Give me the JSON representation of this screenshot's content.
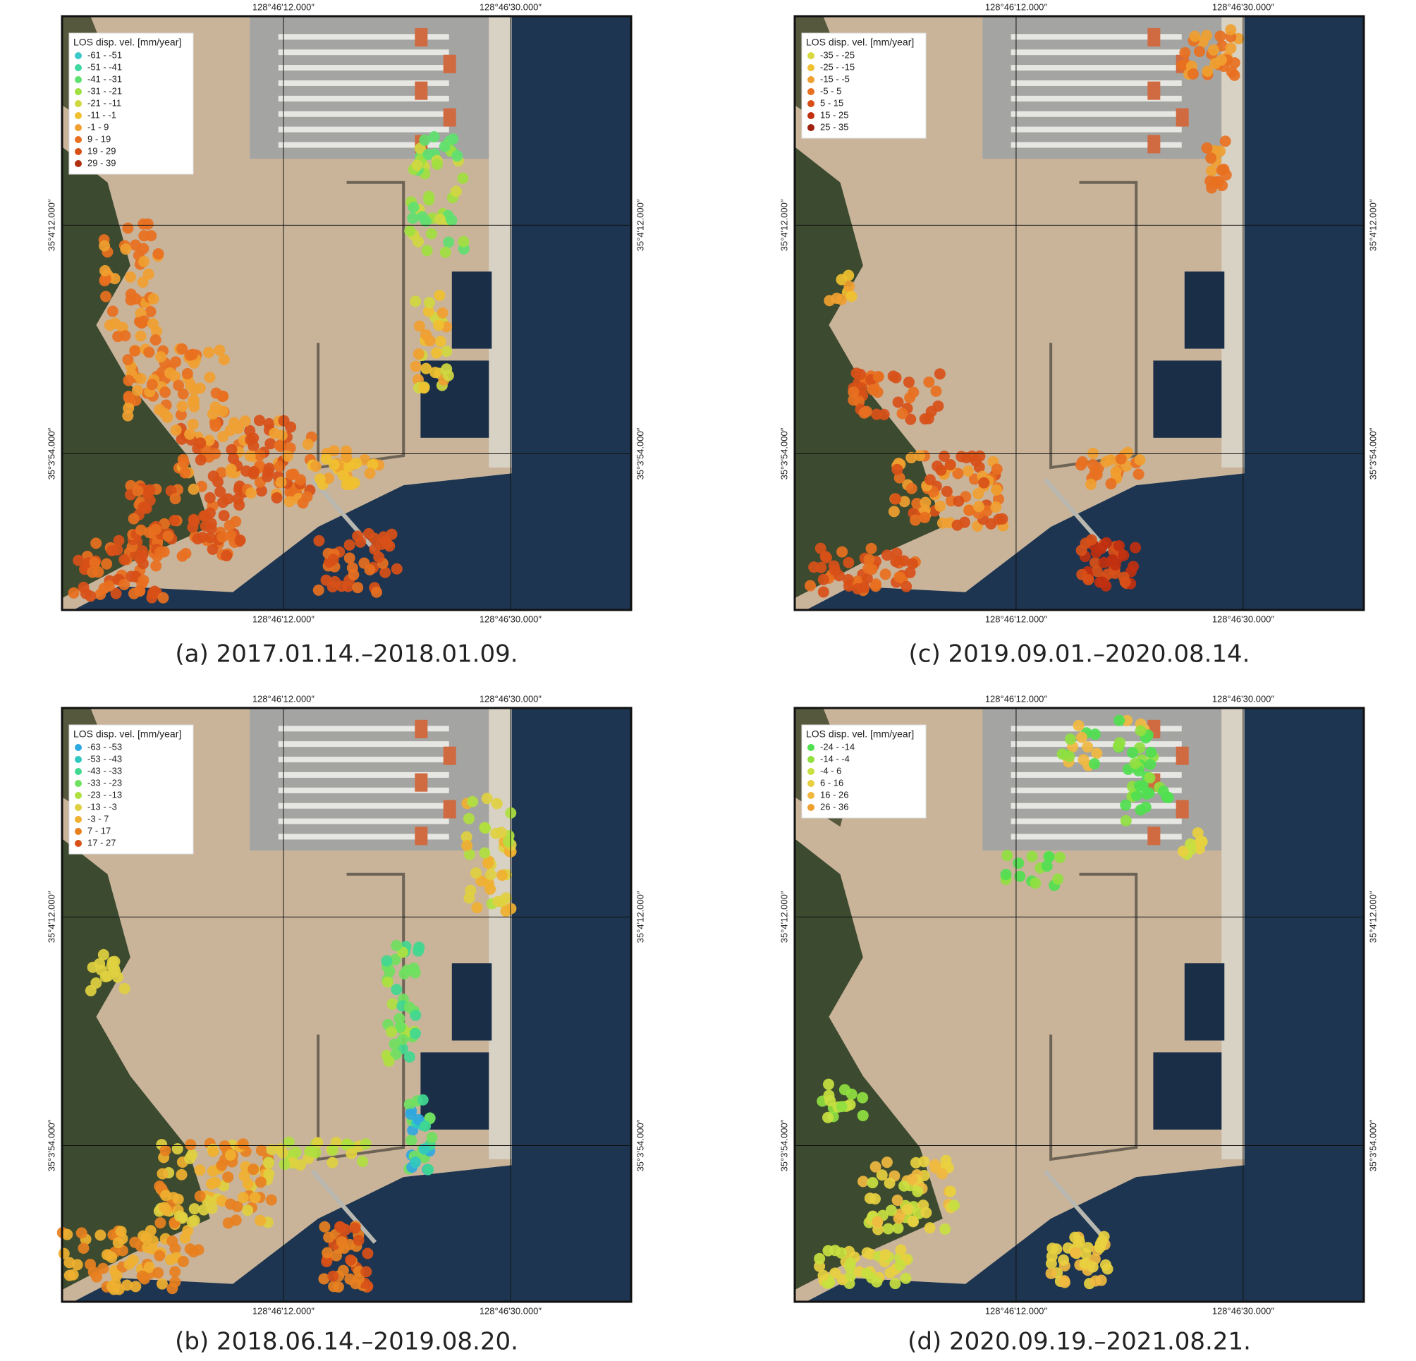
{
  "panels": [
    {
      "caption": "(a) 2017.01.14.–2018.01.09.",
      "legend": {
        "title": "LOS disp. vel. [mm/year]",
        "items": [
          {
            "label": "-61 - -51",
            "color": "#3cc8c8"
          },
          {
            "label": "-51 - -41",
            "color": "#40d8a0"
          },
          {
            "label": "-41 - -31",
            "color": "#60e070"
          },
          {
            "label": "-31 - -21",
            "color": "#a0e040"
          },
          {
            "label": "-21 - -11",
            "color": "#d0d840"
          },
          {
            "label": "-11 - -1",
            "color": "#f0c030"
          },
          {
            "label": "-1 - 9",
            "color": "#f0a030"
          },
          {
            "label": "9 - 19",
            "color": "#e87020"
          },
          {
            "label": "19 - 29",
            "color": "#d85018"
          },
          {
            "label": "29 - 39",
            "color": "#b03010"
          }
        ]
      },
      "top_labels": [
        "128°46'12.000″",
        "128°46'30.000″"
      ],
      "bottom_labels": [
        "128°46'12.000″",
        "128°46'30.000″"
      ],
      "left_labels": [
        "35°4'12.000″",
        "35°3'54.000″"
      ],
      "right_labels": [
        "35°4'12.000″",
        "35°3'54.000″"
      ]
    },
    {
      "caption": "(c) 2019.09.01.–2020.08.14.",
      "legend": {
        "title": "LOS disp. vel. [mm/year]",
        "items": [
          {
            "label": "-35 - -25",
            "color": "#d8d840"
          },
          {
            "label": "-25 - -15",
            "color": "#f0c030"
          },
          {
            "label": "-15 - -5",
            "color": "#f0a030"
          },
          {
            "label": "-5 - 5",
            "color": "#e87020"
          },
          {
            "label": "5 - 15",
            "color": "#d85018"
          },
          {
            "label": "15 - 25",
            "color": "#c03010"
          },
          {
            "label": "25 - 35",
            "color": "#a02010"
          }
        ]
      },
      "top_labels": [
        "128°46'12.000″",
        "128°46'30.000″"
      ],
      "bottom_labels": [
        "128°46'12.000″",
        "128°46'30.000″"
      ],
      "left_labels": [
        "35°4'12.000″",
        "35°3'54.000″"
      ],
      "right_labels": [
        "35°4'12.000″",
        "35°3'54.000″"
      ]
    },
    {
      "caption": "(b) 2018.06.14.–2019.08.20.",
      "legend": {
        "title": "LOS disp. vel. [mm/year]",
        "items": [
          {
            "label": "-63 - -53",
            "color": "#30a8e0"
          },
          {
            "label": "-53 - -43",
            "color": "#30c8c0"
          },
          {
            "label": "-43 - -33",
            "color": "#40d890"
          },
          {
            "label": "-33 - -23",
            "color": "#70e060"
          },
          {
            "label": "-23 - -13",
            "color": "#b0e040"
          },
          {
            "label": "-13 - -3",
            "color": "#e0d040"
          },
          {
            "label": "-3 - 7",
            "color": "#f0b030"
          },
          {
            "label": "7 - 17",
            "color": "#e88020"
          },
          {
            "label": "17 - 27",
            "color": "#d85018"
          }
        ]
      },
      "top_labels": [
        "128°46'12.000″",
        "128°46'30.000″"
      ],
      "bottom_labels": [
        "128°46'12.000″",
        "128°46'30.000″"
      ],
      "left_labels": [
        "35°4'12.000″",
        "35°3'54.000″"
      ],
      "right_labels": [
        "35°4'12.000″",
        "35°3'54.000″"
      ]
    },
    {
      "caption": "(d) 2020.09.19.–2021.08.21.",
      "legend": {
        "title": "LOS disp. vel. [mm/year]",
        "items": [
          {
            "label": "-24 - -14",
            "color": "#50e050"
          },
          {
            "label": "-14 - -4",
            "color": "#90e040"
          },
          {
            "label": "-4 - 6",
            "color": "#c8e040"
          },
          {
            "label": "6 - 16",
            "color": "#e8d040"
          },
          {
            "label": "16 - 26",
            "color": "#f0b840"
          },
          {
            "label": "26 - 36",
            "color": "#f0a030"
          }
        ]
      },
      "top_labels": [
        "128°46'12.000″",
        "128°46'30.000″"
      ],
      "bottom_labels": [
        "128°46'12.000″",
        "128°46'30.000″"
      ],
      "left_labels": [
        "35°4'12.000″",
        "35°3'54.000″"
      ],
      "right_labels": [
        "35°4'12.000″",
        "35°3'54.000″"
      ]
    }
  ]
}
